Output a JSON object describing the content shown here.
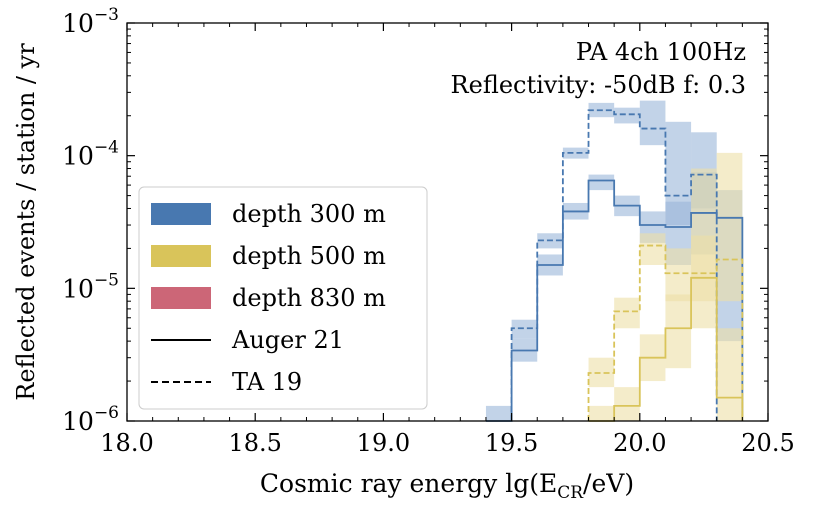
{
  "chart_data": {
    "type": "step",
    "title": "",
    "annotations": [
      "PA 4ch 100Hz",
      "Reflectivity: -50dB f: 0.3"
    ],
    "xlabel": {
      "prefix": "Cosmic ray energy lg(E",
      "sub": "CR",
      "suffix": "/eV)"
    },
    "ylabel": "Reflected events / station / yr",
    "xlim": [
      18.0,
      20.5
    ],
    "ylim": [
      1e-06,
      0.001
    ],
    "yscale": "log",
    "x_ticks": [
      18.0,
      18.5,
      19.0,
      19.5,
      20.0,
      20.5
    ],
    "x_tick_labels": [
      "18.0",
      "18.5",
      "19.0",
      "19.5",
      "20.0",
      "20.5"
    ],
    "y_ticks": [
      1e-06,
      1e-05,
      0.0001,
      0.001
    ],
    "y_tick_labels": [
      {
        "base": "10",
        "exp": "−6"
      },
      {
        "base": "10",
        "exp": "−5"
      },
      {
        "base": "10",
        "exp": "−4"
      },
      {
        "base": "10",
        "exp": "−3"
      }
    ],
    "bin_edges": [
      19.4,
      19.5,
      19.6,
      19.7,
      19.8,
      19.9,
      20.0,
      20.1,
      20.2,
      20.3,
      20.4
    ],
    "series": [
      {
        "name": "depth 300 m",
        "color": "#4878b0",
        "band_color": "#9ab6d8",
        "auger21": [
          1e-06,
          3.4e-06,
          1.5e-05,
          3.8e-05,
          6.5e-05,
          4.2e-05,
          3e-05,
          2.9e-05,
          3.7e-05,
          3.4e-05
        ],
        "ta19": [
          null,
          5e-06,
          2.3e-05,
          0.000105,
          0.00022,
          0.000205,
          0.00016,
          5e-05,
          7.2e-05,
          null
        ],
        "band_auger21": [
          [
            7e-07,
            1.3e-06
          ],
          [
            2.8e-06,
            4.2e-06
          ],
          [
            1.25e-05,
            1.8e-05
          ],
          [
            3.3e-05,
            4.4e-05
          ],
          [
            5.5e-05,
            7.2e-05
          ],
          [
            3.5e-05,
            5e-05
          ],
          [
            2.2e-05,
            3.8e-05
          ],
          [
            1.5e-05,
            4.5e-05
          ],
          [
            1.8e-05,
            7.5e-05
          ],
          [
            4e-06,
            5.5e-05
          ]
        ],
        "band_ta19": [
          [
            null,
            null
          ],
          [
            4.2e-06,
            5.8e-06
          ],
          [
            2e-05,
            2.6e-05
          ],
          [
            9.5e-05,
            0.000115
          ],
          [
            0.000195,
            0.00025
          ],
          [
            0.000175,
            0.00023
          ],
          [
            0.00012,
            0.00026
          ],
          [
            3e-05,
            0.00018
          ],
          [
            4e-05,
            0.00015
          ],
          [
            null,
            null
          ]
        ]
      },
      {
        "name": "depth 500 m",
        "color": "#d9c45a",
        "band_color": "#ede0a6",
        "auger21": [
          null,
          null,
          null,
          null,
          1e-06,
          1.3e-06,
          3e-06,
          5e-06,
          1.2e-05,
          1.5e-06
        ],
        "ta19": [
          null,
          null,
          null,
          null,
          2.3e-06,
          6.7e-06,
          2.1e-05,
          1.3e-05,
          1.3e-05,
          1.65e-05
        ],
        "band_auger21": [
          [
            null,
            null
          ],
          [
            null,
            null
          ],
          [
            null,
            null
          ],
          [
            null,
            null
          ],
          [
            7e-07,
            1.3e-06
          ],
          [
            9e-07,
            1.8e-06
          ],
          [
            2e-06,
            4.5e-06
          ],
          [
            2.5e-06,
            9e-06
          ],
          [
            5e-06,
            2.5e-05
          ],
          [
            7e-07,
            5e-06
          ]
        ],
        "band_ta19": [
          [
            null,
            null
          ],
          [
            null,
            null
          ],
          [
            null,
            null
          ],
          [
            null,
            null
          ],
          [
            1.8e-06,
            3e-06
          ],
          [
            5e-06,
            8.5e-06
          ],
          [
            1.5e-05,
            2.6e-05
          ],
          [
            8e-06,
            2e-05
          ],
          [
            8e-06,
            8e-05
          ],
          [
            8e-06,
            0.000105
          ]
        ]
      },
      {
        "name": "depth 830 m",
        "color": "#cc6677",
        "band_color": "#e6a4ae",
        "auger21": [],
        "ta19": [],
        "band_auger21": [],
        "band_ta19": []
      }
    ],
    "legend": {
      "placement": "lower-left",
      "entries": [
        {
          "label": "depth 300 m",
          "kind": "patch",
          "color": "#4878b0"
        },
        {
          "label": "depth 500 m",
          "kind": "patch",
          "color": "#d9c45a"
        },
        {
          "label": "depth 830 m",
          "kind": "patch",
          "color": "#cc6677"
        },
        {
          "label": "Auger 21",
          "kind": "solid-line",
          "color": "#000000"
        },
        {
          "label": "TA 19",
          "kind": "dashed-line",
          "color": "#000000"
        }
      ]
    }
  }
}
